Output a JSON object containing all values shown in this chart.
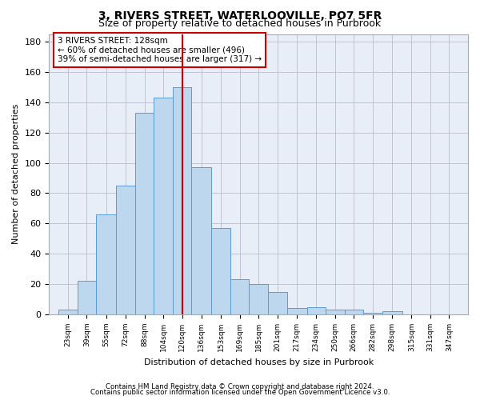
{
  "title1": "3, RIVERS STREET, WATERLOOVILLE, PO7 5FR",
  "title2": "Size of property relative to detached houses in Purbrook",
  "xlabel": "Distribution of detached houses by size in Purbrook",
  "ylabel": "Number of detached properties",
  "bin_starts": [
    23,
    39,
    55,
    72,
    88,
    104,
    120,
    136,
    153,
    169,
    185,
    201,
    217,
    234,
    250,
    266,
    282,
    298,
    315,
    331,
    347
  ],
  "heights": [
    3,
    22,
    66,
    85,
    133,
    143,
    150,
    97,
    57,
    23,
    20,
    15,
    4,
    5,
    3,
    3,
    1,
    2,
    0,
    0,
    0
  ],
  "bar_color": "#BDD7EE",
  "bar_edge_color": "#5B9BD5",
  "vline_x": 128,
  "vline_color": "#CC0000",
  "annotation_text": "3 RIVERS STREET: 128sqm\n← 60% of detached houses are smaller (496)\n39% of semi-detached houses are larger (317) →",
  "annotation_box_color": "#CC0000",
  "ylim": [
    0,
    185
  ],
  "yticks": [
    0,
    20,
    40,
    60,
    80,
    100,
    120,
    140,
    160,
    180
  ],
  "footer1": "Contains HM Land Registry data © Crown copyright and database right 2024.",
  "footer2": "Contains public sector information licensed under the Open Government Licence v3.0.",
  "bg_color": "#FFFFFF",
  "plot_bg_color": "#E8EEF8",
  "grid_color": "#BBBBCC",
  "title1_fontsize": 10,
  "title2_fontsize": 9,
  "annotation_fontsize": 7.5
}
